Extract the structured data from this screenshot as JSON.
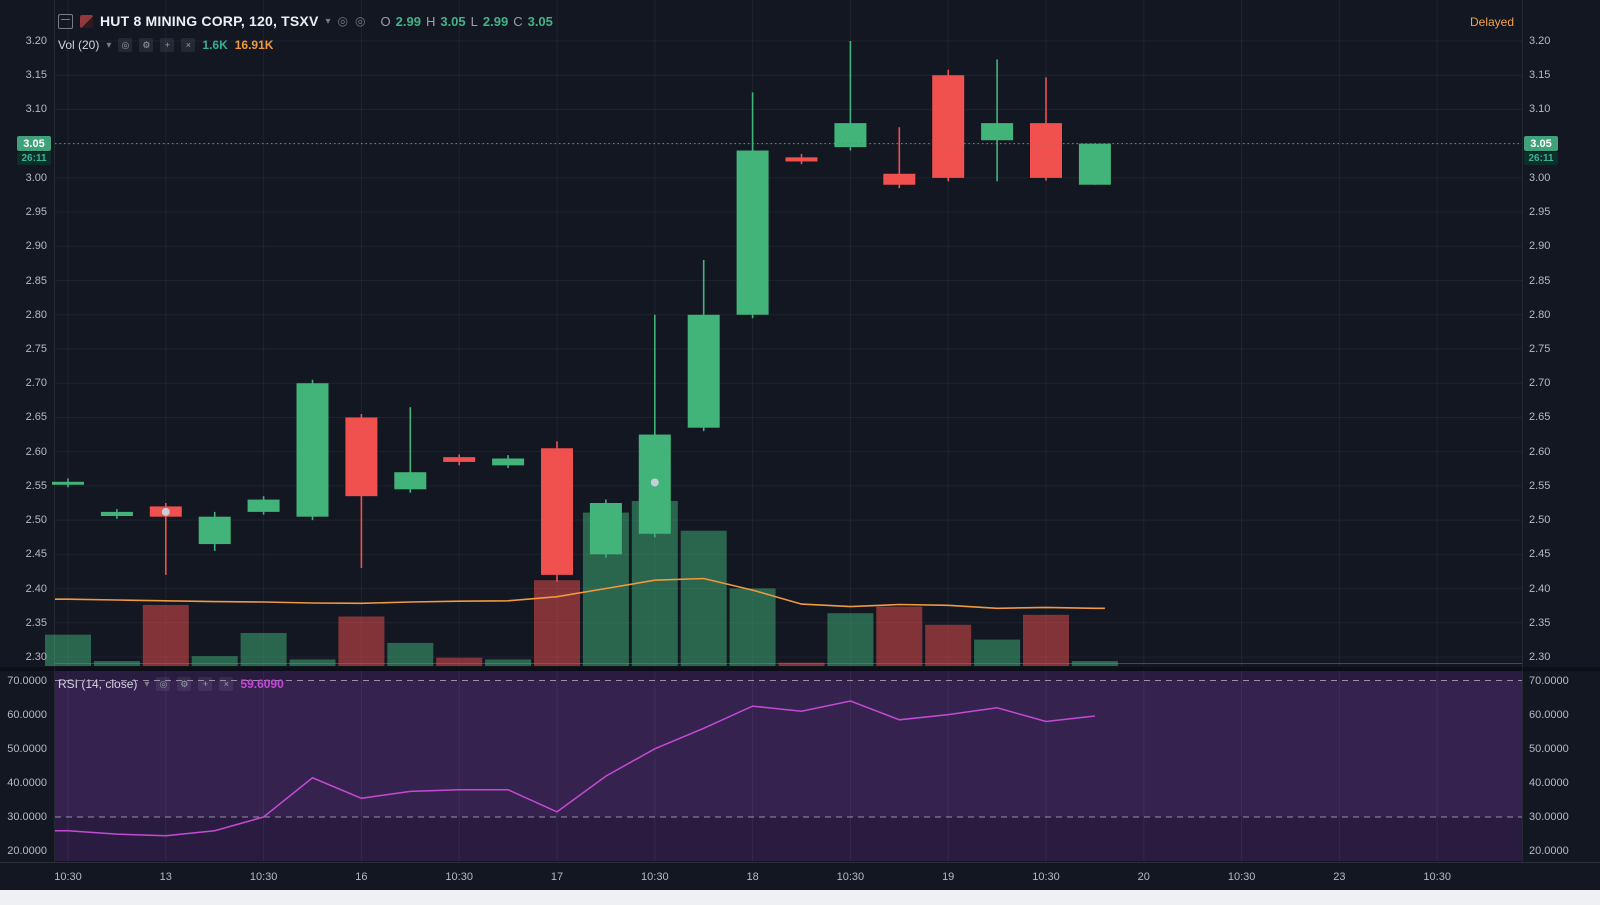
{
  "header": {
    "symbol_title": "HUT 8 MINING CORP, 120, TSXV",
    "caret": "▾",
    "ohlc": {
      "o_label": "O",
      "o_value": "2.99",
      "h_label": "H",
      "h_value": "3.05",
      "l_label": "L",
      "l_value": "2.99",
      "c_label": "C",
      "c_value": "3.05"
    },
    "delayed": "Delayed"
  },
  "indicators": {
    "volume": {
      "label": "Vol (20)",
      "caret": "▾",
      "current": "1.6K",
      "ma": "16.91K"
    },
    "rsi": {
      "label": "RSI (14, close)",
      "caret": "▾",
      "value": "59.6090"
    }
  },
  "icons": {
    "eye": "◎",
    "gear": "⚙",
    "plus": "+",
    "close": "×",
    "circle": "◎"
  },
  "colors": {
    "background": "#131722",
    "rsi_panel_bg": "#2a1c41",
    "up": "#42b379",
    "down": "#f0504e",
    "vol_ma": "#f0993f",
    "rsi_line": "#c44ad4",
    "price_badge_bg": "#3fa27a",
    "countdown_bg": "#0e2f27",
    "countdown_text": "#35b59b",
    "delayed_text": "#f7a144",
    "axis_text": "#b6bac4"
  },
  "chart_data": {
    "type": "candlestick",
    "title": "HUT 8 MINING CORP, 120, TSXV",
    "legend_position": "top-left",
    "grid": true,
    "price_axis": {
      "min": 2.3,
      "max": 3.2,
      "step": 0.05
    },
    "price_ticks": [
      3.2,
      3.15,
      3.1,
      3.05,
      3.0,
      2.95,
      2.9,
      2.85,
      2.8,
      2.75,
      2.7,
      2.65,
      2.6,
      2.55,
      2.5,
      2.45,
      2.4,
      2.35,
      2.3
    ],
    "time_ticks": [
      {
        "label": "10:30",
        "slot": 0
      },
      {
        "label": "13",
        "slot": 2
      },
      {
        "label": "10:30",
        "slot": 4
      },
      {
        "label": "16",
        "slot": 6
      },
      {
        "label": "10:30",
        "slot": 8
      },
      {
        "label": "17",
        "slot": 10
      },
      {
        "label": "10:30",
        "slot": 12
      },
      {
        "label": "18",
        "slot": 14
      },
      {
        "label": "10:30",
        "slot": 16
      },
      {
        "label": "19",
        "slot": 18
      },
      {
        "label": "10:30",
        "slot": 20
      },
      {
        "label": "20",
        "slot": 22
      },
      {
        "label": "10:30",
        "slot": 24
      },
      {
        "label": "23",
        "slot": 26
      },
      {
        "label": "10:30",
        "slot": 28
      }
    ],
    "candles": [
      {
        "o": 2.552,
        "h": 2.561,
        "l": 2.548,
        "c": 2.556
      },
      {
        "o": 2.506,
        "h": 2.516,
        "l": 2.502,
        "c": 2.512
      },
      {
        "o": 2.52,
        "h": 2.525,
        "l": 2.42,
        "c": 2.505,
        "marker": 2.512
      },
      {
        "o": 2.465,
        "h": 2.512,
        "l": 2.455,
        "c": 2.505
      },
      {
        "o": 2.512,
        "h": 2.535,
        "l": 2.508,
        "c": 2.53
      },
      {
        "o": 2.505,
        "h": 2.705,
        "l": 2.5,
        "c": 2.7
      },
      {
        "o": 2.65,
        "h": 2.655,
        "l": 2.43,
        "c": 2.535
      },
      {
        "o": 2.545,
        "h": 2.665,
        "l": 2.54,
        "c": 2.57
      },
      {
        "o": 2.592,
        "h": 2.596,
        "l": 2.58,
        "c": 2.585
      },
      {
        "o": 2.58,
        "h": 2.595,
        "l": 2.576,
        "c": 2.59
      },
      {
        "o": 2.605,
        "h": 2.615,
        "l": 2.41,
        "c": 2.42
      },
      {
        "o": 2.45,
        "h": 2.53,
        "l": 2.445,
        "c": 2.525
      },
      {
        "o": 2.48,
        "h": 2.8,
        "l": 2.475,
        "c": 2.625,
        "marker": 2.555
      },
      {
        "o": 2.635,
        "h": 2.88,
        "l": 2.63,
        "c": 2.8
      },
      {
        "o": 2.8,
        "h": 3.125,
        "l": 2.795,
        "c": 3.04
      },
      {
        "o": 3.03,
        "h": 3.035,
        "l": 3.02,
        "c": 3.024
      },
      {
        "o": 3.045,
        "h": 3.2,
        "l": 3.04,
        "c": 3.08
      },
      {
        "o": 3.006,
        "h": 3.074,
        "l": 2.985,
        "c": 2.99
      },
      {
        "o": 3.15,
        "h": 3.158,
        "l": 2.995,
        "c": 3.0
      },
      {
        "o": 3.055,
        "h": 3.173,
        "l": 2.995,
        "c": 3.08
      },
      {
        "o": 3.08,
        "h": 3.147,
        "l": 2.996,
        "c": 3.0
      },
      {
        "o": 2.99,
        "h": 3.05,
        "l": 2.99,
        "c": 3.05
      }
    ],
    "volume_rel": [
      0.19,
      0.03,
      0.37,
      0.06,
      0.2,
      0.04,
      0.3,
      0.14,
      0.05,
      0.04,
      0.52,
      0.93,
      1.0,
      0.82,
      0.47,
      0.02,
      0.32,
      0.36,
      0.25,
      0.16,
      0.31,
      0.03
    ],
    "volume_current_label": "1.6K",
    "volume_ma_label": "16.91K",
    "volume_ma_rel": [
      0.405,
      0.4,
      0.395,
      0.39,
      0.388,
      0.382,
      0.38,
      0.388,
      0.393,
      0.395,
      0.42,
      0.47,
      0.52,
      0.53,
      0.46,
      0.375,
      0.36,
      0.373,
      0.368,
      0.35,
      0.355,
      0.35
    ],
    "rsi": {
      "values": [
        26,
        25,
        24.5,
        26,
        30,
        41.5,
        35.5,
        37.5,
        38,
        38,
        31.5,
        42,
        50,
        56,
        62.5,
        61,
        64,
        58.5,
        60,
        62,
        58,
        59.6
      ],
      "current": 59.609,
      "upper_band": 70,
      "lower_band": 30,
      "axis_ticks": [
        70,
        60,
        50,
        40,
        30,
        20
      ]
    },
    "price_line": {
      "value": 3.05,
      "label": "3.05",
      "countdown": "26:11"
    }
  }
}
